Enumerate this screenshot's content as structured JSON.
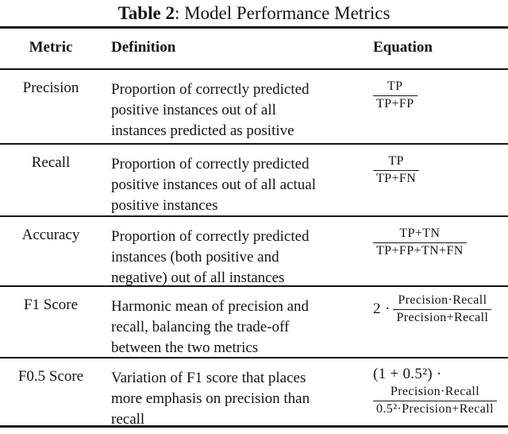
{
  "title": {
    "label": "Table 2",
    "caption": ": Model Performance Metrics"
  },
  "columns": {
    "metric": "Metric",
    "definition": "Definition",
    "equation": "Equation"
  },
  "rows": [
    {
      "metric": "Precision",
      "definition": [
        "Proportion of correctly predicted",
        "positive instances out of all",
        "instances predicted as positive"
      ],
      "equation": {
        "prefix": "",
        "numerator": "TP",
        "denominator": "TP+FP"
      }
    },
    {
      "metric": "Recall",
      "definition": [
        "Proportion of correctly predicted",
        "positive instances out of all actual",
        "positive instances"
      ],
      "equation": {
        "prefix": "",
        "numerator": "TP",
        "denominator": "TP+FN"
      }
    },
    {
      "metric": "Accuracy",
      "definition": [
        "Proportion of correctly predicted",
        "instances (both positive and",
        "negative) out of all instances"
      ],
      "equation": {
        "prefix": "",
        "numerator": "TP+TN",
        "denominator": "TP+FP+TN+FN"
      }
    },
    {
      "metric": "F1 Score",
      "definition": [
        "Harmonic mean of precision and",
        "recall, balancing the trade-off",
        "between the two metrics"
      ],
      "equation": {
        "prefix": "2 ·",
        "numerator": "Precision·Recall",
        "denominator": "Precision+Recall"
      }
    },
    {
      "metric": "F0.5 Score",
      "definition": [
        "Variation of F1 score that places",
        "more emphasis on precision than",
        "recall"
      ],
      "equation": {
        "prefix": "(1 + 0.5²) ·",
        "numerator": "Precision·Recall",
        "denominator": "0.5²·Precision+Recall"
      }
    }
  ],
  "colors": {
    "text": "#141414",
    "rule": "#141414",
    "background": "#ffffff"
  }
}
